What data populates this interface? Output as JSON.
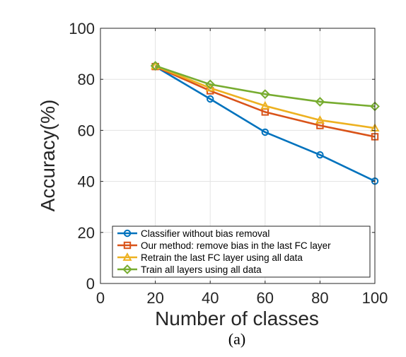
{
  "chart_data": {
    "type": "line",
    "xlabel": "Number of classes",
    "ylabel": "Accuracy(%)",
    "caption": "(a)",
    "xlim": [
      0,
      100
    ],
    "ylim": [
      0,
      100
    ],
    "xticks": [
      "0",
      "20",
      "40",
      "60",
      "80",
      "100"
    ],
    "yticks": [
      "0",
      "20",
      "40",
      "60",
      "80",
      "100"
    ],
    "grid": true,
    "legend_position": "bottom",
    "x": [
      20,
      40,
      60,
      80,
      100
    ],
    "series": [
      {
        "name": "Classifier without bias removal",
        "values": [
          85,
          72.3,
          59.3,
          50.4,
          40.1
        ],
        "color": "#0072BD",
        "marker": "circle"
      },
      {
        "name": "Our method: remove bias in the last FC layer",
        "values": [
          85,
          75.5,
          67.2,
          61.9,
          57.5
        ],
        "color": "#D95319",
        "marker": "square"
      },
      {
        "name": "Retrain the last FC layer using all data",
        "values": [
          85.2,
          76.6,
          69.6,
          64,
          60.9
        ],
        "color": "#EDB120",
        "marker": "triangle"
      },
      {
        "name": "Train all layers using all data",
        "values": [
          85.3,
          78,
          74.2,
          71.2,
          69.4
        ],
        "color": "#77AC30",
        "marker": "diamond"
      }
    ]
  }
}
